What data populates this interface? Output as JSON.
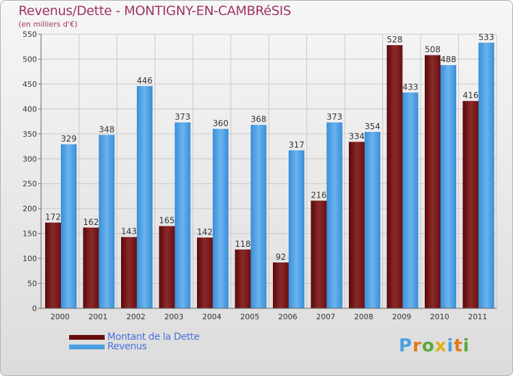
{
  "header": {
    "title": "Revenus/Dette - MONTIGNY-EN-CAMBRéSIS",
    "subtitle": "(en milliers d'€)"
  },
  "chart_data": {
    "type": "bar",
    "categories": [
      "2000",
      "2001",
      "2002",
      "2003",
      "2004",
      "2005",
      "2006",
      "2007",
      "2008",
      "2009",
      "2010",
      "2011"
    ],
    "series": [
      {
        "name": "Montant de la Dette",
        "color": "#7a1a1a",
        "values": [
          172,
          162,
          143,
          165,
          142,
          118,
          92,
          216,
          334,
          528,
          508,
          416
        ]
      },
      {
        "name": "Revenus",
        "color": "#4a9fe0",
        "values": [
          329,
          348,
          446,
          373,
          360,
          368,
          317,
          373,
          354,
          433,
          488,
          533
        ]
      }
    ],
    "ylim": [
      0,
      550
    ],
    "yticks": [
      0,
      50,
      100,
      150,
      200,
      250,
      300,
      350,
      400,
      450,
      500,
      550
    ],
    "grid": true,
    "legend_position": "bottom-left"
  },
  "legend": {
    "items": [
      {
        "label": "Montant de la Dette",
        "color": "#6a0d0d"
      },
      {
        "label": "Revenus",
        "color": "#4a9fe0"
      }
    ]
  },
  "logo": {
    "text": "Proxiti",
    "letters": [
      {
        "ch": "P",
        "color": "#4a9fe0"
      },
      {
        "ch": "r",
        "color": "#e07a1a"
      },
      {
        "ch": "o",
        "color": "#5aa83a"
      },
      {
        "ch": "x",
        "color": "#e0b01a"
      },
      {
        "ch": "i",
        "color": "#4a9fe0"
      },
      {
        "ch": "t",
        "color": "#e07a1a"
      },
      {
        "ch": "i",
        "color": "#5aa83a"
      }
    ]
  }
}
